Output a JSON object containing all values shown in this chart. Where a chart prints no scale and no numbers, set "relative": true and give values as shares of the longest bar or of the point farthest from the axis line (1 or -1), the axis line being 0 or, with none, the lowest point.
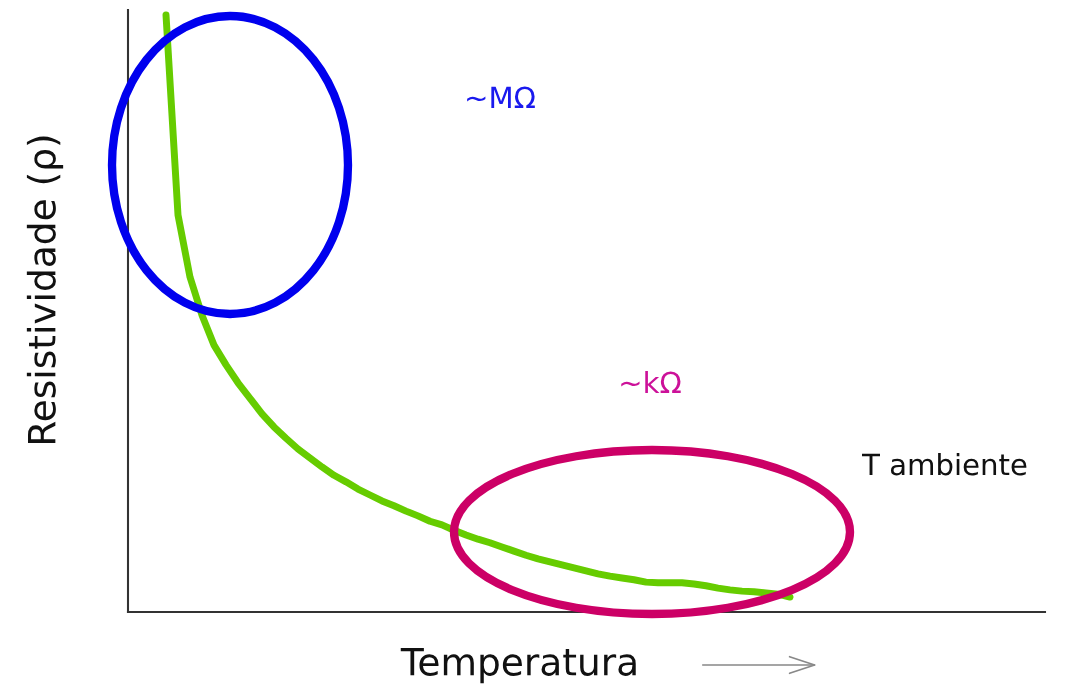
{
  "chart_data": {
    "type": "line",
    "relative": true,
    "xlabel": "Temperatura",
    "ylabel": "Resistividade (ρ)",
    "annotations": [
      "~MΩ",
      "~kΩ",
      "T ambiente"
    ],
    "categories": [
      null,
      null,
      null,
      null,
      null,
      null,
      null,
      null,
      null,
      null,
      null,
      null,
      null,
      null,
      null,
      null,
      null,
      null,
      null,
      null,
      null,
      null,
      null,
      null,
      null,
      null,
      null,
      null,
      null,
      null,
      null,
      null,
      null,
      null,
      null,
      null,
      null,
      null,
      null,
      null,
      null,
      null,
      null,
      null,
      null,
      null,
      null,
      null,
      null,
      null,
      null,
      null,
      null
    ],
    "series": [
      {
        "color": "#66cc00",
        "values": [
          1.0,
          0.665,
          0.561,
          0.497,
          0.447,
          0.414,
          0.384,
          0.358,
          0.332,
          0.31,
          0.291,
          0.273,
          0.258,
          0.243,
          0.229,
          0.218,
          0.206,
          0.196,
          0.186,
          0.178,
          0.169,
          0.161,
          0.152,
          0.146,
          0.137,
          0.129,
          0.122,
          0.116,
          0.109,
          0.102,
          0.095,
          0.089,
          0.084,
          0.079,
          0.074,
          0.069,
          0.064,
          0.06,
          0.057,
          0.054,
          0.05,
          0.049,
          0.049,
          0.049,
          0.047,
          0.044,
          0.04,
          0.037,
          0.035,
          0.034,
          0.032,
          0.03,
          0.025
        ]
      }
    ]
  }
}
